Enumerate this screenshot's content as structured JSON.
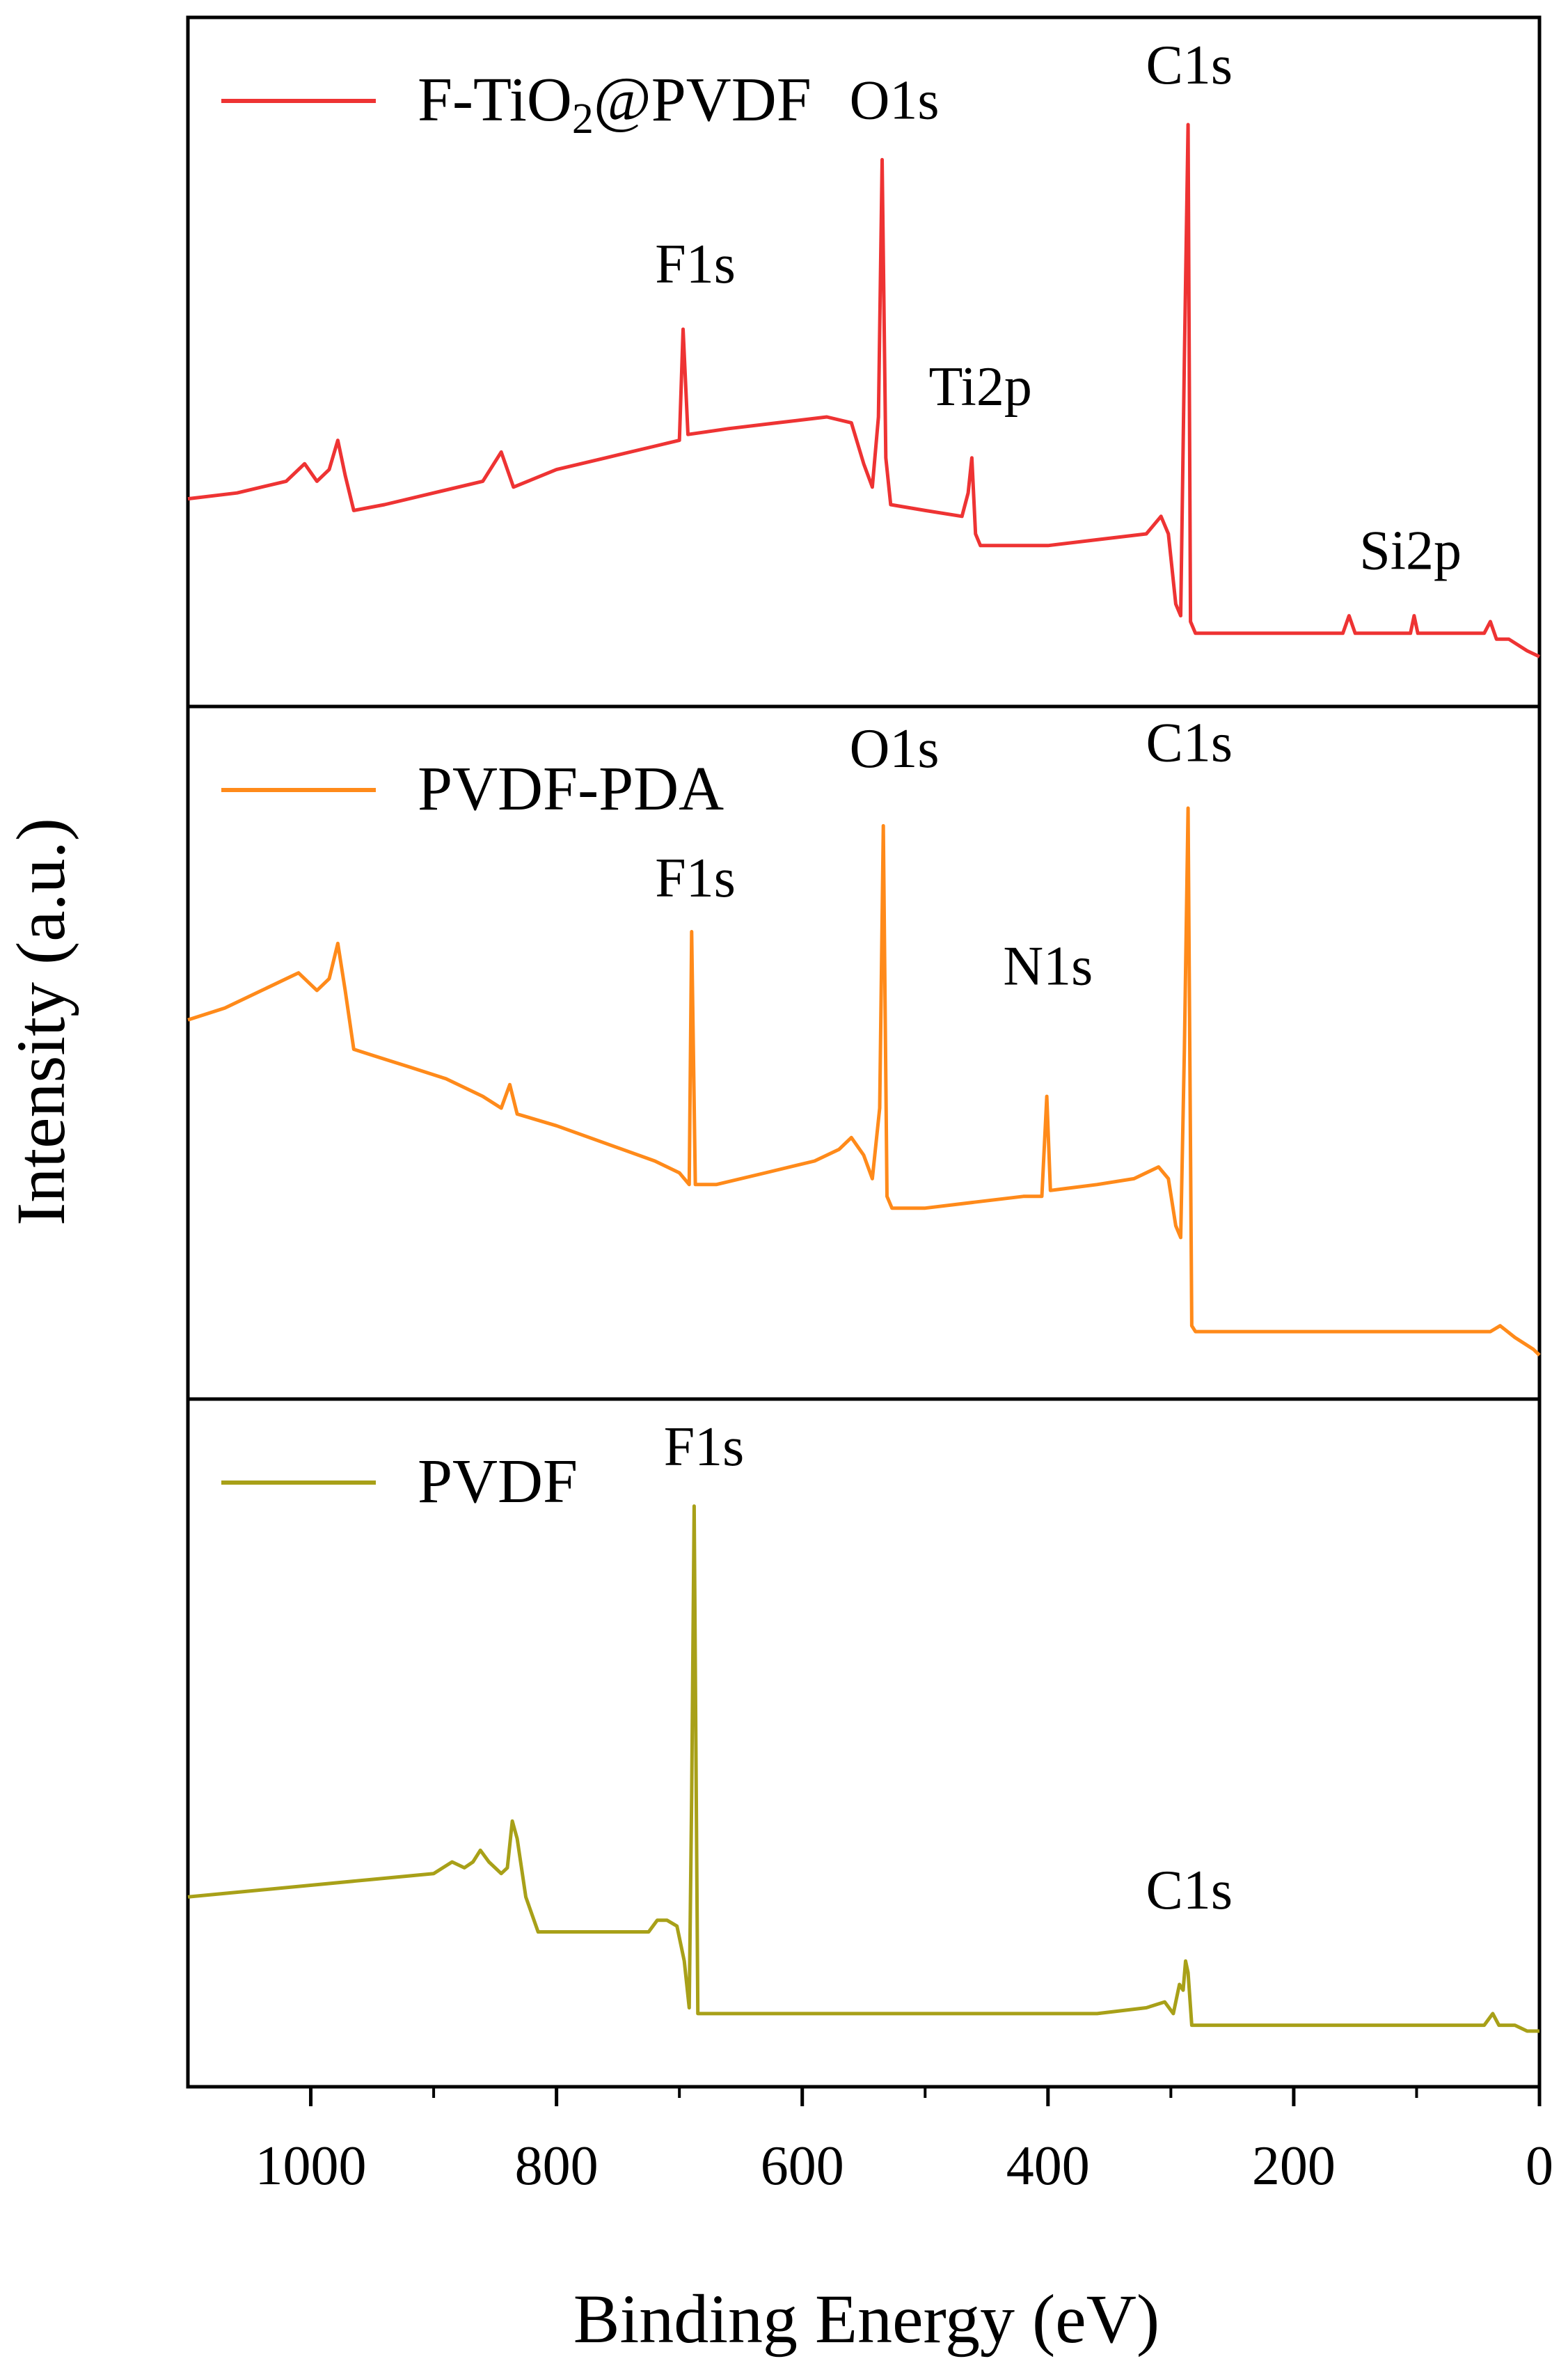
{
  "figure": {
    "xlabel": "Binding Energy (eV)",
    "ylabel": "Intensity (a.u.)"
  },
  "chart_data": {
    "type": "line",
    "xlabel": "Binding Energy (eV)",
    "ylabel": "Intensity (a.u.)",
    "xlim": [
      1100,
      0
    ],
    "x_reversed": true,
    "xticks": [
      1000,
      800,
      600,
      400,
      200,
      0
    ],
    "xtick_labels": [
      "1000",
      "800",
      "600",
      "400",
      "200",
      "0"
    ],
    "panels": [
      {
        "name": "F-TiO2@PVDF",
        "legend_prefix": "F-TiO",
        "legend_sub": "2",
        "legend_suffix": "@PVDF",
        "color": "#ee3333",
        "ylim": [
          0,
          100
        ],
        "points": [
          [
            1100,
            26
          ],
          [
            1060,
            27
          ],
          [
            1020,
            29
          ],
          [
            1005,
            32
          ],
          [
            995,
            29
          ],
          [
            985,
            31
          ],
          [
            978,
            36
          ],
          [
            972,
            30
          ],
          [
            965,
            24
          ],
          [
            940,
            25
          ],
          [
            900,
            27
          ],
          [
            860,
            29
          ],
          [
            845,
            34
          ],
          [
            835,
            28
          ],
          [
            800,
            31
          ],
          [
            760,
            33
          ],
          [
            720,
            35
          ],
          [
            700,
            36
          ],
          [
            697,
            55
          ],
          [
            693,
            37
          ],
          [
            660,
            38
          ],
          [
            620,
            39
          ],
          [
            580,
            40
          ],
          [
            560,
            39
          ],
          [
            550,
            32
          ],
          [
            543,
            28
          ],
          [
            538,
            40
          ],
          [
            535,
            84
          ],
          [
            532,
            33
          ],
          [
            528,
            25
          ],
          [
            500,
            24
          ],
          [
            470,
            23
          ],
          [
            465,
            27
          ],
          [
            462,
            33
          ],
          [
            459,
            20
          ],
          [
            455,
            18
          ],
          [
            400,
            18
          ],
          [
            360,
            19
          ],
          [
            320,
            20
          ],
          [
            308,
            23
          ],
          [
            302,
            20
          ],
          [
            296,
            8
          ],
          [
            292,
            6
          ],
          [
            289,
            50
          ],
          [
            286,
            90
          ],
          [
            284,
            5
          ],
          [
            280,
            3
          ],
          [
            250,
            3
          ],
          [
            200,
            3
          ],
          [
            160,
            3
          ],
          [
            155,
            6
          ],
          [
            150,
            3
          ],
          [
            105,
            3
          ],
          [
            102,
            6
          ],
          [
            99,
            3
          ],
          [
            45,
            3
          ],
          [
            40,
            5
          ],
          [
            35,
            2
          ],
          [
            25,
            2
          ],
          [
            10,
            0
          ],
          [
            0,
            -1
          ]
        ],
        "peak_labels": [
          {
            "text": "F1s",
            "x": 687,
            "y": 63
          },
          {
            "text": "O1s",
            "x": 525,
            "y": 91
          },
          {
            "text": "Ti2p",
            "x": 455,
            "y": 42
          },
          {
            "text": "C1s",
            "x": 285,
            "y": 97
          },
          {
            "text": "Si2p",
            "x": 105,
            "y": 14
          }
        ]
      },
      {
        "name": "PVDF-PDA",
        "legend_text": "PVDF-PDA",
        "color": "#ff8a1a",
        "ylim": [
          0,
          100
        ],
        "points": [
          [
            1100,
            55
          ],
          [
            1070,
            57
          ],
          [
            1040,
            60
          ],
          [
            1010,
            63
          ],
          [
            995,
            60
          ],
          [
            985,
            62
          ],
          [
            978,
            68
          ],
          [
            972,
            60
          ],
          [
            965,
            50
          ],
          [
            950,
            49
          ],
          [
            920,
            47
          ],
          [
            890,
            45
          ],
          [
            860,
            42
          ],
          [
            845,
            40
          ],
          [
            838,
            44
          ],
          [
            832,
            39
          ],
          [
            800,
            37
          ],
          [
            760,
            34
          ],
          [
            720,
            31
          ],
          [
            700,
            29
          ],
          [
            692,
            27
          ],
          [
            690,
            70
          ],
          [
            687,
            27
          ],
          [
            670,
            27
          ],
          [
            630,
            29
          ],
          [
            590,
            31
          ],
          [
            570,
            33
          ],
          [
            560,
            35
          ],
          [
            550,
            32
          ],
          [
            543,
            28
          ],
          [
            537,
            40
          ],
          [
            534,
            88
          ],
          [
            531,
            25
          ],
          [
            527,
            23
          ],
          [
            500,
            23
          ],
          [
            460,
            24
          ],
          [
            420,
            25
          ],
          [
            405,
            25
          ],
          [
            401,
            42
          ],
          [
            398,
            26
          ],
          [
            360,
            27
          ],
          [
            330,
            28
          ],
          [
            310,
            30
          ],
          [
            302,
            28
          ],
          [
            296,
            20
          ],
          [
            292,
            18
          ],
          [
            289,
            50
          ],
          [
            286,
            91
          ],
          [
            283,
            3
          ],
          [
            280,
            2
          ],
          [
            200,
            2
          ],
          [
            100,
            2
          ],
          [
            40,
            2
          ],
          [
            32,
            3
          ],
          [
            20,
            1
          ],
          [
            5,
            -1
          ],
          [
            0,
            -2
          ]
        ],
        "peak_labels": [
          {
            "text": "F1s",
            "x": 687,
            "y": 76
          },
          {
            "text": "O1s",
            "x": 525,
            "y": 98
          },
          {
            "text": "N1s",
            "x": 400,
            "y": 61
          },
          {
            "text": "C1s",
            "x": 285,
            "y": 99
          }
        ]
      },
      {
        "name": "PVDF",
        "legend_text": "PVDF",
        "color": "#a8a018",
        "ylim": [
          0,
          100
        ],
        "points": [
          [
            1100,
            23
          ],
          [
            1050,
            24
          ],
          [
            1000,
            25
          ],
          [
            950,
            26
          ],
          [
            900,
            27
          ],
          [
            885,
            29
          ],
          [
            875,
            28
          ],
          [
            868,
            29
          ],
          [
            862,
            31
          ],
          [
            855,
            29
          ],
          [
            845,
            27
          ],
          [
            840,
            28
          ],
          [
            836,
            36
          ],
          [
            832,
            33
          ],
          [
            825,
            23
          ],
          [
            815,
            17
          ],
          [
            800,
            17
          ],
          [
            770,
            17
          ],
          [
            740,
            17
          ],
          [
            725,
            17
          ],
          [
            718,
            19
          ],
          [
            710,
            19
          ],
          [
            702,
            18
          ],
          [
            696,
            12
          ],
          [
            692,
            4
          ],
          [
            690,
            40
          ],
          [
            688,
            90
          ],
          [
            685,
            3
          ],
          [
            680,
            3
          ],
          [
            640,
            3
          ],
          [
            600,
            3
          ],
          [
            580,
            3
          ],
          [
            540,
            3
          ],
          [
            500,
            3
          ],
          [
            440,
            3
          ],
          [
            400,
            3
          ],
          [
            360,
            3
          ],
          [
            320,
            4
          ],
          [
            305,
            5
          ],
          [
            298,
            3
          ],
          [
            293,
            8
          ],
          [
            290,
            7
          ],
          [
            288,
            12
          ],
          [
            286,
            10
          ],
          [
            283,
            1
          ],
          [
            280,
            1
          ],
          [
            200,
            1
          ],
          [
            100,
            1
          ],
          [
            45,
            1
          ],
          [
            38,
            3
          ],
          [
            33,
            1
          ],
          [
            20,
            1
          ],
          [
            10,
            0
          ],
          [
            0,
            0
          ]
        ],
        "peak_labels": [
          {
            "text": "F1s",
            "x": 680,
            "y": 97
          },
          {
            "text": "C1s",
            "x": 285,
            "y": 21
          }
        ]
      }
    ]
  }
}
